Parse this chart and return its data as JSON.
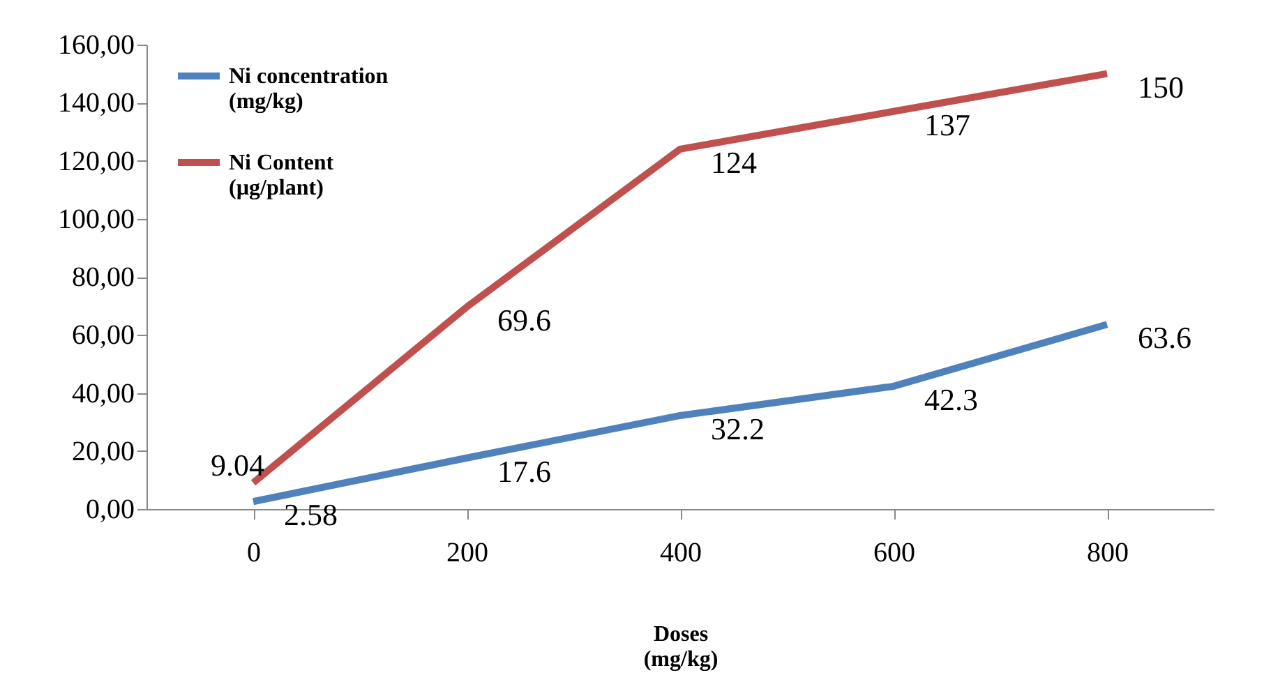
{
  "chart_data": {
    "type": "line",
    "xlabel": "Doses (mg/kg)",
    "categories": [
      "0",
      "200",
      "400",
      "600",
      "800"
    ],
    "series": [
      {
        "name": "Ni concentration (mg/kg)",
        "color": "#4f81bd",
        "values": [
          2.58,
          17.6,
          32.2,
          42.3,
          63.6
        ]
      },
      {
        "name": "Ni Content (µg/plant)",
        "color": "#c0504d",
        "values": [
          9.04,
          69.6,
          124,
          137,
          150
        ]
      }
    ],
    "ylim": [
      0,
      160
    ],
    "yticks": [
      {
        "value": 0,
        "label": "0,00"
      },
      {
        "value": 20,
        "label": "20,00"
      },
      {
        "value": 40,
        "label": "40,00"
      },
      {
        "value": 60,
        "label": "60,00"
      },
      {
        "value": 80,
        "label": "80,00"
      },
      {
        "value": 100,
        "label": "100,00"
      },
      {
        "value": 120,
        "label": "120,00"
      },
      {
        "value": 140,
        "label": "140,00"
      },
      {
        "value": 160,
        "label": "160,00"
      }
    ],
    "grid": false,
    "legend": "top left",
    "marker": "none",
    "line_style": "solid",
    "data_labels": true
  }
}
